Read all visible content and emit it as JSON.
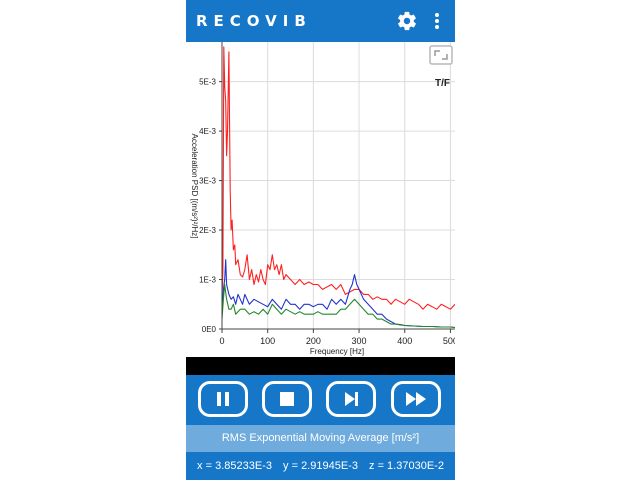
{
  "app": {
    "logo_text": "RECOVIB",
    "settings_icon": "gear-icon",
    "menu_icon": "more-vert-icon",
    "accent_color": "#1677c9",
    "light_accent_color": "#6fabdc"
  },
  "chart_controls": {
    "fullscreen_icon": "fullscreen-icon",
    "mode_label": "T/F"
  },
  "chart_data": {
    "type": "line",
    "xlabel": "Frequency [Hz]",
    "ylabel": "Acceleration PSD [(m/s²)²/Hz]",
    "xlim": [
      0,
      510
    ],
    "ylim": [
      0,
      0.0058
    ],
    "xticks": [
      0,
      100,
      200,
      300,
      400,
      500
    ],
    "xtick_labels": [
      "0",
      "100",
      "200",
      "300",
      "400",
      "500"
    ],
    "yticks": [
      0,
      0.001,
      0.002,
      0.003,
      0.004,
      0.005
    ],
    "ytick_labels": [
      "0E0",
      "1E-3",
      "2E-3",
      "3E-3",
      "4E-3",
      "5E-3"
    ],
    "grid": true,
    "series": [
      {
        "color": "#ff2020",
        "x": [
          0,
          2,
          4,
          6,
          8,
          10,
          12,
          15,
          18,
          20,
          22,
          25,
          28,
          30,
          35,
          40,
          45,
          50,
          55,
          60,
          65,
          70,
          75,
          80,
          85,
          90,
          95,
          100,
          105,
          110,
          115,
          120,
          125,
          130,
          135,
          140,
          150,
          160,
          170,
          180,
          190,
          200,
          210,
          220,
          230,
          240,
          250,
          260,
          270,
          280,
          290,
          300,
          310,
          320,
          330,
          340,
          350,
          360,
          370,
          380,
          390,
          400,
          410,
          420,
          430,
          440,
          450,
          460,
          470,
          480,
          490,
          500,
          510
        ],
        "y": [
          0.0006,
          0.0012,
          0.0057,
          0.0049,
          0.0046,
          0.0035,
          0.004,
          0.0056,
          0.0028,
          0.002,
          0.0022,
          0.0016,
          0.0017,
          0.0013,
          0.0014,
          0.0011,
          0.00105,
          0.0012,
          0.0015,
          0.001,
          0.0012,
          0.0009,
          0.0011,
          0.00095,
          0.0012,
          0.001,
          0.0009,
          0.0013,
          0.0012,
          0.0015,
          0.0012,
          0.0013,
          0.0011,
          0.0013,
          0.001,
          0.0011,
          0.001,
          0.0009,
          0.001,
          0.0009,
          0.00095,
          0.0009,
          0.0009,
          0.0008,
          0.00085,
          0.0009,
          0.0008,
          0.0009,
          0.0007,
          0.00075,
          0.0008,
          0.0008,
          0.0007,
          0.0007,
          0.0006,
          0.00065,
          0.0006,
          0.0006,
          0.0005,
          0.0006,
          0.00055,
          0.0005,
          0.0006,
          0.00055,
          0.0005,
          0.0004,
          0.0005,
          0.00045,
          0.0004,
          0.0005,
          0.00045,
          0.0004,
          0.0005
        ]
      },
      {
        "color": "#2233cc",
        "x": [
          0,
          3,
          6,
          8,
          10,
          15,
          20,
          25,
          30,
          35,
          40,
          45,
          50,
          60,
          70,
          80,
          90,
          100,
          110,
          120,
          130,
          140,
          150,
          160,
          170,
          180,
          190,
          200,
          210,
          220,
          230,
          240,
          250,
          260,
          270,
          280,
          285,
          290,
          295,
          300,
          310,
          320,
          330,
          340,
          350,
          360,
          370,
          380,
          390,
          400,
          420,
          440,
          460,
          480,
          500,
          510
        ],
        "y": [
          0.0003,
          0.0008,
          0.001,
          0.0014,
          0.0009,
          0.0007,
          0.0006,
          0.00065,
          0.0005,
          0.0007,
          0.0006,
          0.0005,
          0.0007,
          0.0005,
          0.0006,
          0.00055,
          0.0005,
          0.00045,
          0.0006,
          0.0005,
          0.0004,
          0.0006,
          0.0005,
          0.0005,
          0.0004,
          0.0005,
          0.0005,
          0.00045,
          0.0005,
          0.0005,
          0.0004,
          0.0006,
          0.0005,
          0.0006,
          0.0005,
          0.0008,
          0.0009,
          0.0011,
          0.0009,
          0.0008,
          0.0006,
          0.0005,
          0.0004,
          0.0003,
          0.0003,
          0.0002,
          0.00015,
          0.0001,
          9e-05,
          7e-05,
          6e-05,
          5e-05,
          5e-05,
          4e-05,
          4e-05,
          3e-05
        ]
      },
      {
        "color": "#22882a",
        "x": [
          0,
          3,
          6,
          10,
          15,
          20,
          25,
          30,
          40,
          50,
          60,
          70,
          80,
          90,
          100,
          110,
          120,
          130,
          140,
          150,
          160,
          170,
          180,
          190,
          200,
          210,
          220,
          230,
          240,
          250,
          260,
          270,
          280,
          290,
          300,
          310,
          320,
          330,
          340,
          350,
          360,
          370,
          380,
          390,
          400,
          420,
          440,
          460,
          480,
          500,
          510
        ],
        "y": [
          0.0002,
          0.0006,
          0.0009,
          0.0006,
          0.0004,
          0.0004,
          0.0005,
          0.0003,
          0.0004,
          0.0004,
          0.0003,
          0.00035,
          0.0003,
          0.0004,
          0.0003,
          0.0005,
          0.0004,
          0.0003,
          0.0004,
          0.00035,
          0.0003,
          0.00035,
          0.0003,
          0.0003,
          0.0003,
          0.00035,
          0.0003,
          0.0003,
          0.0003,
          0.0003,
          0.0004,
          0.0004,
          0.0005,
          0.0006,
          0.0005,
          0.0004,
          0.0003,
          0.0003,
          0.0002,
          0.0002,
          0.00015,
          0.0001,
          0.0001,
          8e-05,
          7e-05,
          6e-05,
          5e-05,
          5e-05,
          4e-05,
          4e-05,
          3e-05
        ]
      }
    ]
  },
  "player_controls": {
    "pause_icon": "pause-icon",
    "stop_icon": "stop-icon",
    "skip_icon": "skip-next-icon",
    "fast_forward_icon": "fast-forward-icon"
  },
  "status": {
    "rms_label": "RMS Exponential Moving Average [m/s²]",
    "x_value": "x = 3.85233E-3",
    "y_value": "y = 2.91945E-3",
    "z_value": "z = 1.37030E-2"
  }
}
